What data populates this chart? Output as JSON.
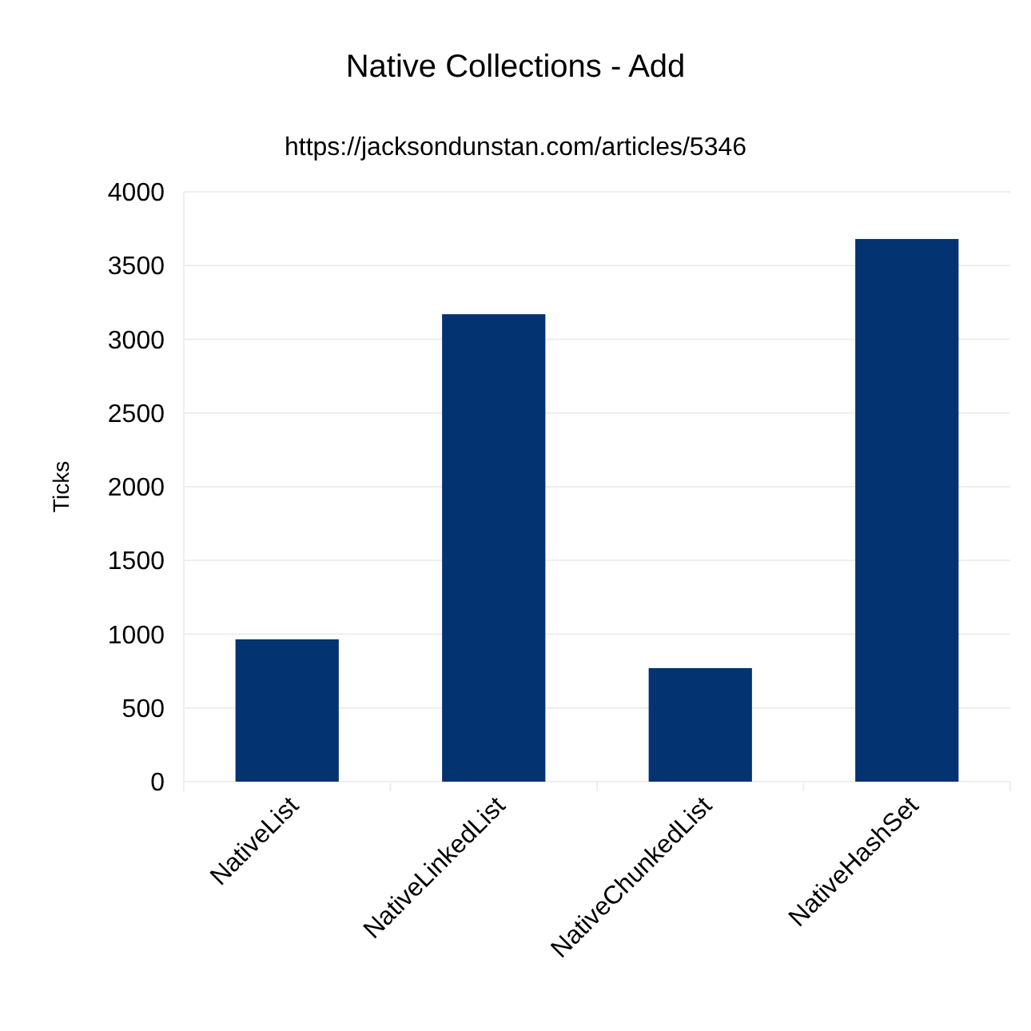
{
  "chart_data": {
    "type": "bar",
    "title": "Native Collections - Add",
    "subtitle": "https://jacksondunstan.com/articles/5346",
    "ylabel": "Ticks",
    "categories": [
      "NativeList",
      "NativeLinkedList",
      "NativeChunkedList",
      "NativeHashSet"
    ],
    "values": [
      965,
      3170,
      770,
      3680
    ],
    "color": "#043371",
    "ylim": [
      0,
      4000
    ],
    "yticks": [
      0,
      500,
      1000,
      1500,
      2000,
      2500,
      3000,
      3500,
      4000
    ],
    "grid": "y"
  }
}
